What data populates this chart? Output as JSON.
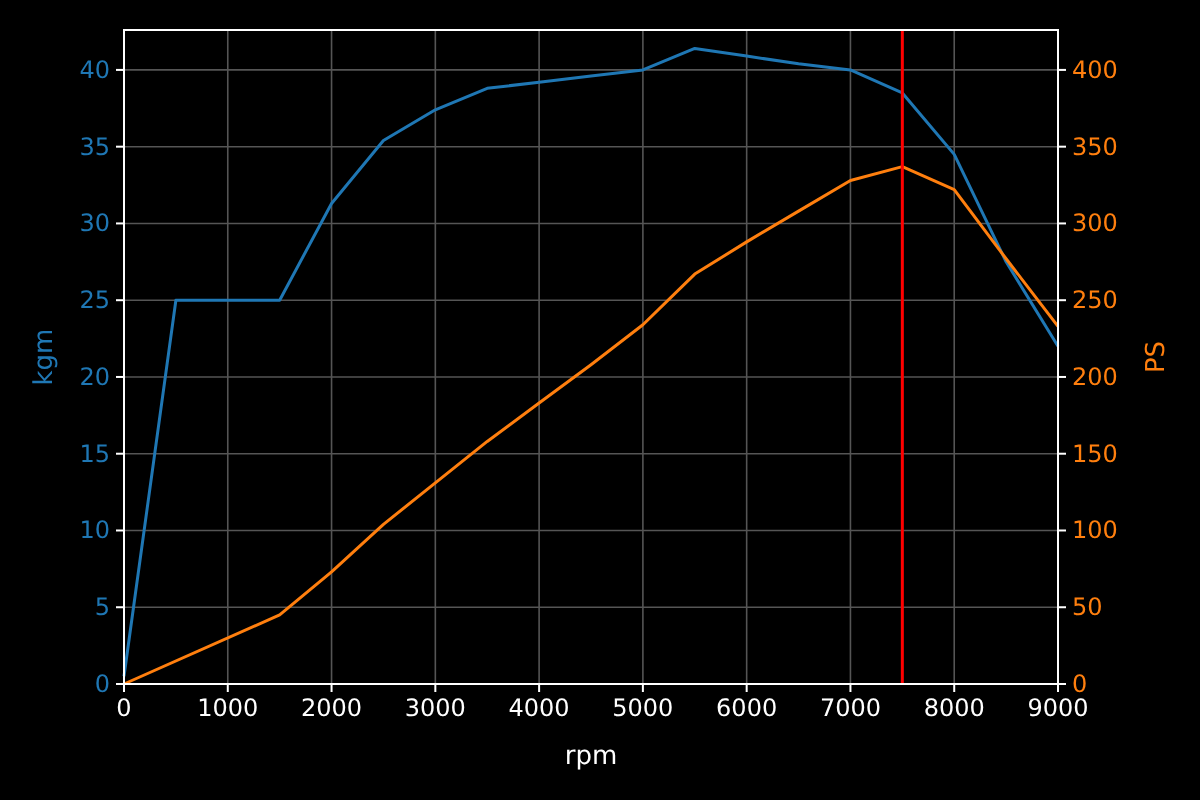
{
  "chart_data": {
    "type": "line",
    "xlabel": "rpm",
    "ylabel": "kgm",
    "y2label": "PS",
    "x": [
      0,
      500,
      1000,
      1500,
      2000,
      2500,
      3000,
      3500,
      4000,
      4500,
      5000,
      5500,
      6000,
      6500,
      7000,
      7500,
      8000,
      8500,
      9000
    ],
    "series": [
      {
        "color": "#1f77b4",
        "values": [
          0.5,
          25,
          25,
          25,
          31.3,
          35.4,
          37.4,
          38.8,
          39.2,
          39.6,
          40,
          41.4,
          40.9,
          40.4,
          40,
          38.5,
          34.5,
          27.5,
          22
        ]
      },
      {
        "color": "#ff7f0e",
        "axis": "y2",
        "x": [
          0,
          1500,
          2000,
          2500,
          3000,
          3500,
          4000,
          4500,
          5000,
          5500,
          6000,
          6500,
          7000,
          7500,
          8000,
          8500,
          9000
        ],
        "values": [
          0,
          45,
          73,
          104,
          131,
          158,
          183,
          208,
          234,
          267,
          288,
          308,
          328,
          337,
          322,
          277,
          233
        ]
      }
    ],
    "xlim": [
      0,
      9000
    ],
    "xticks": [
      0,
      1000,
      2000,
      3000,
      4000,
      5000,
      6000,
      7000,
      8000,
      9000
    ],
    "ylim": [
      0,
      42.6
    ],
    "yticks": [
      0,
      5,
      10,
      15,
      20,
      25,
      30,
      35,
      40
    ],
    "y2lim": [
      0,
      426
    ],
    "y2ticks": [
      0,
      50,
      100,
      150,
      200,
      250,
      300,
      350,
      400
    ],
    "ref_lines": [
      {
        "axis": "x",
        "value": 7500,
        "color": "#ff0000"
      }
    ],
    "grid": true
  }
}
